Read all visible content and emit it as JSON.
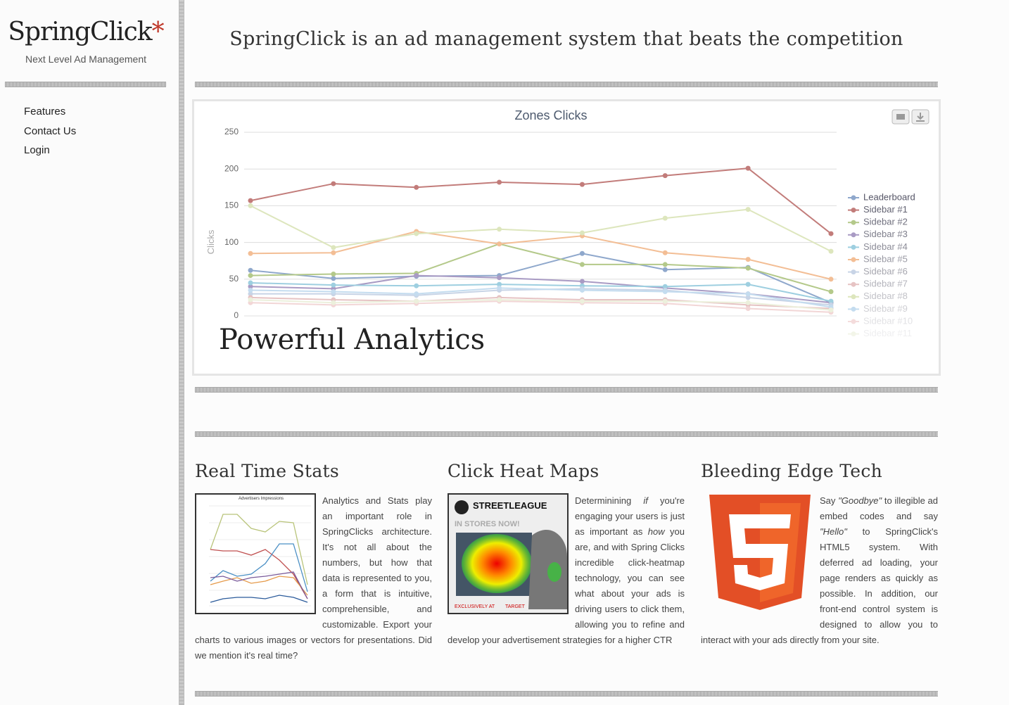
{
  "sidebar": {
    "logo": "SpringClick",
    "logo_mark": "*",
    "tagline": "Next Level Ad Management",
    "nav": [
      "Features",
      "Contact Us",
      "Login"
    ]
  },
  "header": {
    "title": "SpringClick is an ad management system that beats the competition"
  },
  "hero": {
    "caption": "Powerful Analytics",
    "chart_data": {
      "type": "line",
      "title": "Zones Clicks",
      "y_label": "Clicks",
      "categories": [
        null,
        null,
        null,
        null,
        null,
        null,
        null,
        null
      ],
      "ylim": [
        0,
        250
      ],
      "yticks": [
        0,
        50,
        100,
        150,
        200,
        250
      ],
      "grid": true,
      "legend": "right",
      "series": [
        {
          "name": "Leaderboard",
          "color": "#8fa8cc",
          "values": [
            62,
            51,
            54,
            55,
            85,
            63,
            66,
            18
          ]
        },
        {
          "name": "Sidebar #1",
          "color": "#c27c7a",
          "values": [
            157,
            180,
            175,
            182,
            179,
            191,
            201,
            112
          ]
        },
        {
          "name": "Sidebar #2",
          "color": "#b4c98a",
          "values": [
            55,
            57,
            58,
            98,
            70,
            70,
            65,
            33
          ]
        },
        {
          "name": "Sidebar #3",
          "color": "#a99bc4",
          "values": [
            40,
            37,
            55,
            52,
            47,
            38,
            30,
            18
          ]
        },
        {
          "name": "Sidebar #4",
          "color": "#9ecfe0",
          "values": [
            45,
            42,
            41,
            43,
            41,
            40,
            43,
            20
          ]
        },
        {
          "name": "Sidebar #5",
          "color": "#f3be95",
          "values": [
            85,
            86,
            115,
            98,
            109,
            86,
            77,
            50
          ]
        },
        {
          "name": "Sidebar #6",
          "color": "#c8d4e6",
          "values": [
            30,
            30,
            28,
            35,
            37,
            35,
            25,
            15
          ]
        },
        {
          "name": "Sidebar #7",
          "color": "#e6c3c3",
          "values": [
            25,
            22,
            20,
            25,
            22,
            22,
            15,
            10
          ]
        },
        {
          "name": "Sidebar #8",
          "color": "#dde6bd",
          "values": [
            150,
            93,
            112,
            118,
            113,
            133,
            145,
            88
          ]
        },
        {
          "name": "Sidebar #9",
          "color": "#c4dcef",
          "values": [
            35,
            33,
            30,
            38,
            35,
            33,
            30,
            12
          ]
        },
        {
          "name": "Sidebar #10",
          "color": "#f2d6d6",
          "values": [
            18,
            15,
            17,
            20,
            18,
            17,
            10,
            5
          ]
        },
        {
          "name": "Sidebar #11",
          "color": "#ecf0dc",
          "values": [
            22,
            18,
            20,
            22,
            20,
            20,
            18,
            8
          ]
        }
      ]
    }
  },
  "features": [
    {
      "title": "Real Time Stats",
      "image_title": "Advertisers Impressions",
      "parts": [
        "Analytics and Stats play an important role in SpringClicks architecture. It's not all about the numbers, but how that data is represented to you, a form that is intuitive, comprehensible, and customizable. Export your charts to various images or vectors for presentations. Did we mention it's real time?"
      ]
    },
    {
      "title": "Click Heat Maps",
      "image_texts": [
        "STREETLEAGUE",
        "IN STORES NOW!",
        "EXCLUSIVELY AT",
        "TARGET"
      ],
      "parts": [
        "Determinining ",
        "if",
        " you're engaging your users is just as important as ",
        "how",
        " you are, and with Spring Clicks incredible click-heatmap technology, you can see what about your ads is driving users to click them, allowing you to refine and develop your advertisement strategies for a higher CTR"
      ]
    },
    {
      "title": "Bleeding Edge Tech",
      "parts": [
        "Say ",
        "\"Goodbye\"",
        " to illegible ad embed codes and say ",
        "\"Hello\"",
        " to SpringClick's HTML5 system. With deferred ad loading, your page renders as quickly as possible. In addition, our front-end control system is designed to allow you to interact with your ads directly from your site."
      ]
    }
  ]
}
